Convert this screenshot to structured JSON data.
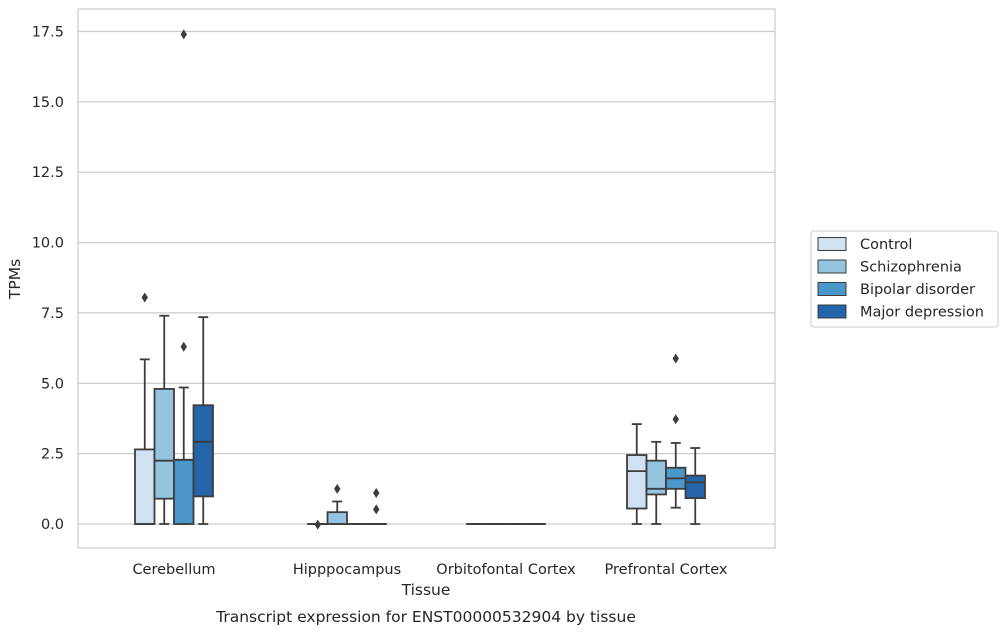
{
  "chart_data": {
    "type": "box",
    "xlabel": "Tissue",
    "ylabel": "TPMs",
    "caption": "Transcript expression for ENST00000532904 by tissue",
    "ylim": [
      -0.85,
      18.3
    ],
    "yticks": [
      "0.0",
      "2.5",
      "5.0",
      "7.5",
      "10.0",
      "12.5",
      "15.0",
      "17.5"
    ],
    "ytick_values": [
      0,
      2.5,
      5,
      7.5,
      10,
      12.5,
      15,
      17.5
    ],
    "grid": "horizontal",
    "legend_position": "right",
    "categories": [
      "Cerebellum",
      "Hipppocampus",
      "Orbitofontal Cortex",
      "Prefrontal Cortex"
    ],
    "series": [
      {
        "name": "Control",
        "color": "#d0e1f2",
        "boxes": [
          {
            "whislo": 0,
            "q1": 0,
            "med": 0,
            "q3": 2.65,
            "whishi": 5.85,
            "fliers": [
              8.05
            ]
          },
          {
            "whislo": 0,
            "q1": 0,
            "med": 0,
            "q3": 0,
            "whishi": 0,
            "fliers": [
              -0.02
            ]
          },
          {
            "whislo": 0,
            "q1": 0,
            "med": 0,
            "q3": 0,
            "whishi": 0,
            "fliers": []
          },
          {
            "whislo": 0,
            "q1": 0.55,
            "med": 1.88,
            "q3": 2.45,
            "whishi": 3.55,
            "fliers": []
          }
        ]
      },
      {
        "name": "Schizophrenia",
        "color": "#94c4df",
        "boxes": [
          {
            "whislo": 0,
            "q1": 0.9,
            "med": 2.25,
            "q3": 4.8,
            "whishi": 7.4,
            "fliers": []
          },
          {
            "whislo": 0,
            "q1": 0,
            "med": 0,
            "q3": 0.42,
            "whishi": 0.8,
            "fliers": [
              1.25
            ]
          },
          {
            "whislo": 0,
            "q1": 0,
            "med": 0,
            "q3": 0,
            "whishi": 0,
            "fliers": []
          },
          {
            "whislo": 0,
            "q1": 1.05,
            "med": 1.25,
            "q3": 2.25,
            "whishi": 2.92,
            "fliers": []
          }
        ]
      },
      {
        "name": "Bipolar disorder",
        "color": "#4a98c9",
        "boxes": [
          {
            "whislo": 0,
            "q1": 0,
            "med": 2.28,
            "q3": 2.28,
            "whishi": 4.85,
            "fliers": [
              6.3,
              17.4
            ]
          },
          {
            "whislo": 0,
            "q1": 0,
            "med": 0,
            "q3": 0,
            "whishi": 0,
            "fliers": []
          },
          {
            "whislo": 0,
            "q1": 0,
            "med": 0,
            "q3": 0,
            "whishi": 0,
            "fliers": []
          },
          {
            "whislo": 0.58,
            "q1": 1.25,
            "med": 1.62,
            "q3": 2.0,
            "whishi": 2.88,
            "fliers": [
              3.72,
              5.88
            ]
          }
        ]
      },
      {
        "name": "Major depression",
        "color": "#2464a8",
        "boxes": [
          {
            "whislo": 0,
            "q1": 0.98,
            "med": 2.92,
            "q3": 4.22,
            "whishi": 7.35,
            "fliers": []
          },
          {
            "whislo": 0,
            "q1": 0,
            "med": 0,
            "q3": 0,
            "whishi": 0,
            "fliers": [
              0.52,
              1.1
            ]
          },
          {
            "whislo": 0,
            "q1": 0,
            "med": 0,
            "q3": 0,
            "whishi": 0,
            "fliers": []
          },
          {
            "whislo": 0,
            "q1": 0.92,
            "med": 1.48,
            "q3": 1.72,
            "whishi": 2.7,
            "fliers": []
          }
        ]
      }
    ]
  }
}
